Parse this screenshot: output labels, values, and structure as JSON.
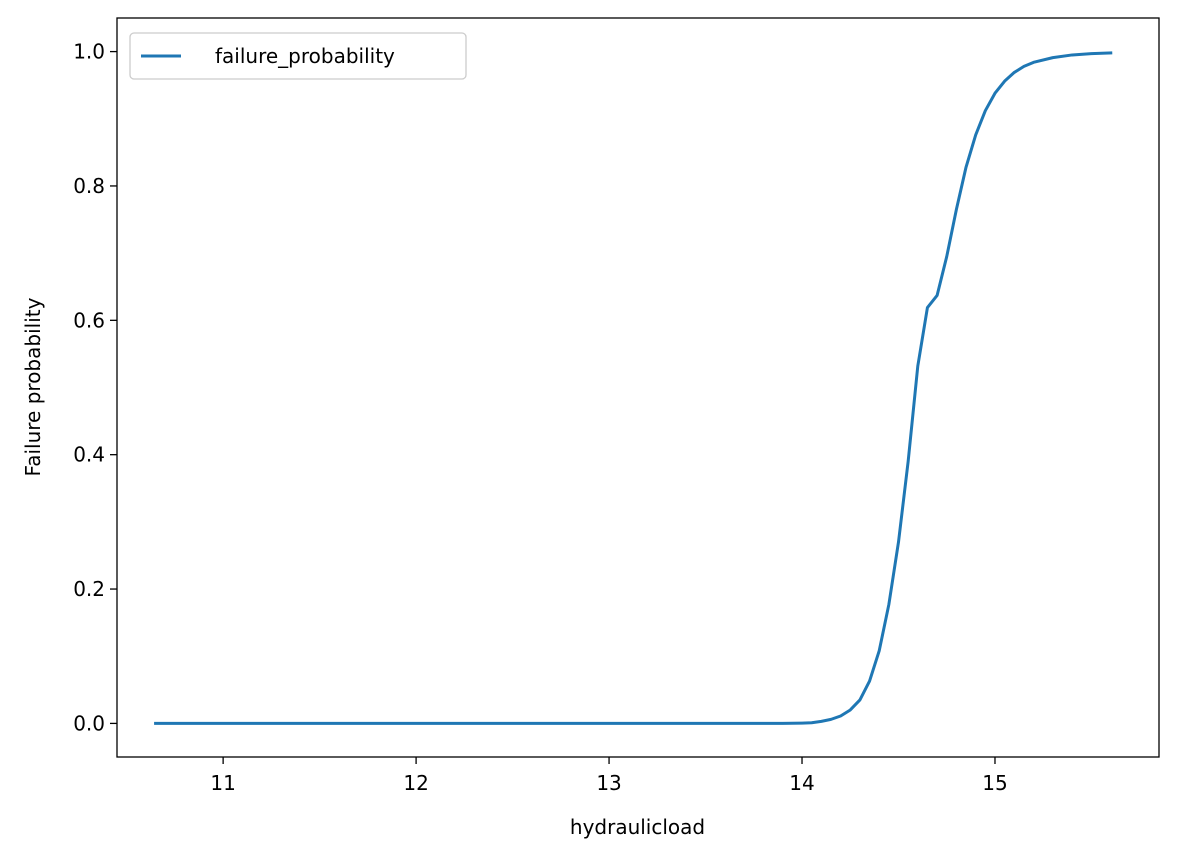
{
  "chart_data": {
    "type": "line",
    "title": "",
    "xlabel": "hydraulicload",
    "ylabel": "Failure probability",
    "xlim": [
      10.45,
      15.85
    ],
    "ylim": [
      -0.05,
      1.05
    ],
    "xticks": [
      11,
      12,
      13,
      14,
      15
    ],
    "xtick_labels": [
      "11",
      "12",
      "13",
      "14",
      "15"
    ],
    "yticks": [
      0.0,
      0.2,
      0.4,
      0.6,
      0.8,
      1.0
    ],
    "ytick_labels": [
      "0.0",
      "0.2",
      "0.4",
      "0.6",
      "0.8",
      "1.0"
    ],
    "grid": false,
    "legend_position": "top-left",
    "series": [
      {
        "name": "failure_probability",
        "color": "#1f77b4",
        "x": [
          10.65,
          11.0,
          11.5,
          12.0,
          12.5,
          13.0,
          13.5,
          13.8,
          13.9,
          14.0,
          14.05,
          14.1,
          14.15,
          14.2,
          14.25,
          14.3,
          14.35,
          14.4,
          14.45,
          14.5,
          14.55,
          14.6,
          14.65,
          14.7,
          14.75,
          14.8,
          14.85,
          14.9,
          14.95,
          15.0,
          15.05,
          15.1,
          15.15,
          15.2,
          15.3,
          15.4,
          15.5,
          15.6
        ],
        "y": [
          0.0,
          0.0,
          0.0,
          0.0,
          0.0,
          0.0,
          0.0,
          0.0,
          0.0,
          0.0005,
          0.001,
          0.003,
          0.006,
          0.011,
          0.02,
          0.035,
          0.063,
          0.108,
          0.177,
          0.27,
          0.39,
          0.532,
          0.619,
          0.637,
          0.695,
          0.765,
          0.828,
          0.876,
          0.912,
          0.938,
          0.956,
          0.969,
          0.978,
          0.984,
          0.991,
          0.995,
          0.997,
          0.998
        ]
      }
    ]
  }
}
